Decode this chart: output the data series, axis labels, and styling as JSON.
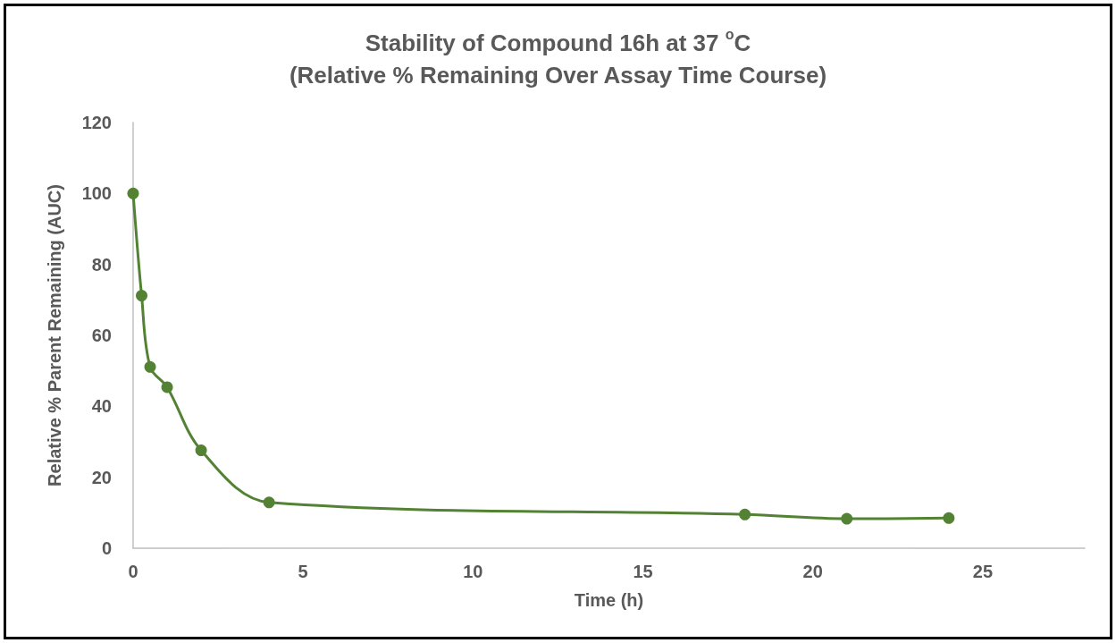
{
  "chart_data": {
    "type": "line",
    "title": "Stability of Compound 16h at 37 $^{o}$C\n(Relative % Remaining Over Assay Time Course)",
    "xlabel": "Time (h)",
    "ylabel": "Relative % Parent Remaining (AUC)",
    "x": [
      0,
      0.25,
      0.5,
      1,
      2,
      4,
      18,
      21,
      24
    ],
    "series": [
      {
        "color": "#548235",
        "values": [
          100,
          71.2,
          51.1,
          45.4,
          27.6,
          12.9,
          9.5,
          8.3,
          8.5
        ]
      }
    ],
    "xlim": [
      0,
      28
    ],
    "xticks": [
      0,
      5,
      10,
      15,
      20,
      25
    ],
    "ylim": [
      0,
      120
    ],
    "yticks": [
      0,
      20,
      40,
      60,
      80,
      100,
      120
    ],
    "grid": false,
    "marker": "circle",
    "line_style": "solid"
  }
}
